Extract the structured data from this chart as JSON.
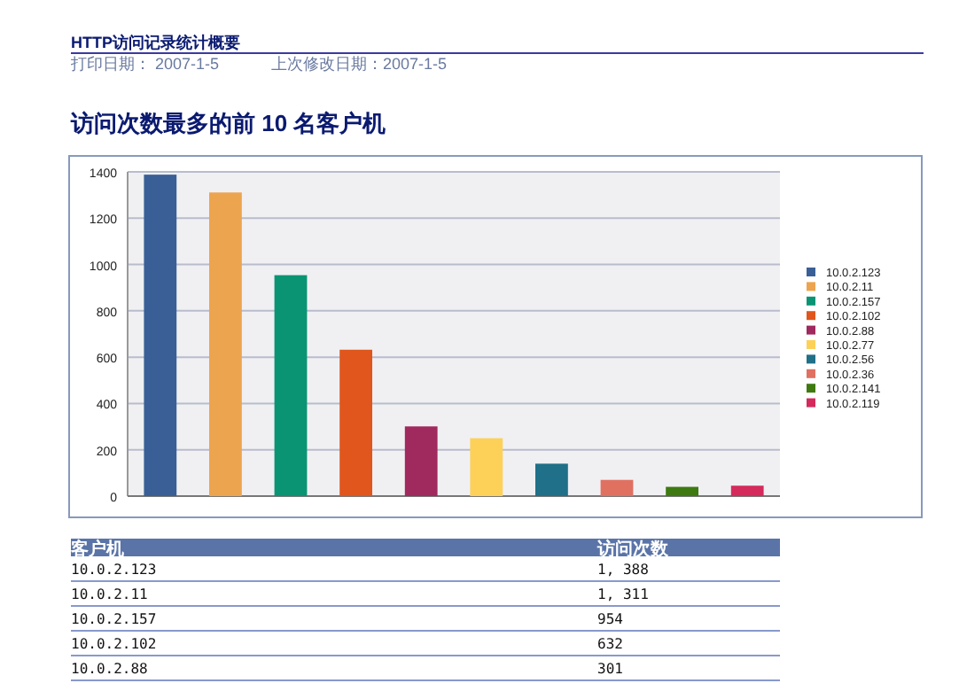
{
  "chart_data": {
    "type": "bar",
    "title": "访问次数最多的前 10 名客户机",
    "annotations": [
      "HTTP访问记录统计概要",
      "打印日期：   2007-1-5",
      "上次修改日期：2007-1-5",
      "客户机",
      "访问次数",
      "10.0.2.123",
      "1, 388",
      "10.0.2.11",
      "1, 311",
      "10.0.2.157",
      "954",
      "10.0.2.102",
      "632",
      "10.0.2.88",
      "301"
    ],
    "categories": [
      null,
      null,
      null,
      null,
      null,
      null,
      null,
      null,
      null,
      null
    ],
    "series": [
      {
        "name": "10.0.2.123",
        "color": "#3a5f96",
        "values": [
          1388,
          null,
          null,
          null,
          null,
          null,
          null,
          null,
          null,
          null
        ]
      },
      {
        "name": "10.0.2.11",
        "color": "#eda44f",
        "values": [
          null,
          1311,
          null,
          null,
          null,
          null,
          null,
          null,
          null,
          null
        ]
      },
      {
        "name": "10.0.2.157",
        "color": "#0a9474",
        "values": [
          null,
          null,
          954,
          null,
          null,
          null,
          null,
          null,
          null,
          null
        ]
      },
      {
        "name": "10.0.2.102",
        "color": "#e0561c",
        "values": [
          null,
          null,
          null,
          632,
          null,
          null,
          null,
          null,
          null,
          null
        ]
      },
      {
        "name": "10.0.2.88",
        "color": "#a0295e",
        "values": [
          null,
          null,
          null,
          null,
          301,
          null,
          null,
          null,
          null,
          null
        ]
      },
      {
        "name": "10.0.2.77",
        "color": "#fdd058",
        "values": [
          null,
          null,
          null,
          null,
          null,
          250,
          null,
          null,
          null,
          null
        ]
      },
      {
        "name": "10.0.2.56",
        "color": "#1f7088",
        "values": [
          null,
          null,
          null,
          null,
          null,
          null,
          140,
          null,
          null,
          null
        ]
      },
      {
        "name": "10.0.2.36",
        "color": "#e07060",
        "values": [
          null,
          null,
          null,
          null,
          null,
          null,
          null,
          70,
          null,
          null
        ]
      },
      {
        "name": "10.0.2.141",
        "color": "#3e7a10",
        "values": [
          null,
          null,
          null,
          null,
          null,
          null,
          null,
          null,
          40,
          null
        ]
      },
      {
        "name": "10.0.2.119",
        "color": "#d42a5c",
        "values": [
          null,
          null,
          null,
          null,
          null,
          null,
          null,
          null,
          null,
          45
        ]
      }
    ],
    "ylim": [
      0,
      1400
    ],
    "yticks": [
      0,
      200,
      400,
      600,
      800,
      1000,
      1200,
      1400
    ],
    "grid": "y",
    "legend": "right",
    "tick_labels": "y"
  }
}
